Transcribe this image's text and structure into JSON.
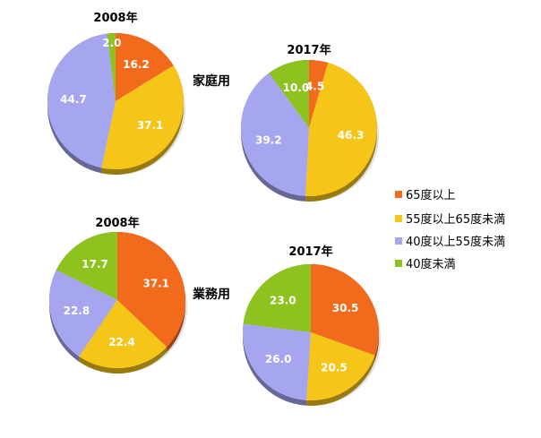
{
  "legend": [
    {
      "label": "65度以上",
      "color": "#f26b1d"
    },
    {
      "label": "55度以上65度未満",
      "color": "#f5c518"
    },
    {
      "label": "40度以上55度未満",
      "color": "#a6a6f0"
    },
    {
      "label": "40度未満",
      "color": "#8ec21f"
    }
  ],
  "groups": {
    "household": "家庭用",
    "business": "業務用"
  },
  "chart_data": [
    {
      "type": "pie",
      "title": "2008年",
      "group": "家庭用",
      "categories": [
        "65度以上",
        "55度以上65度未満",
        "40度以上55度未満",
        "40度未満"
      ],
      "values": [
        16.2,
        37.1,
        44.7,
        2.0
      ]
    },
    {
      "type": "pie",
      "title": "2017年",
      "group": "家庭用",
      "categories": [
        "65度以上",
        "55度以上65度未満",
        "40度以上55度未満",
        "40度未満"
      ],
      "values": [
        4.5,
        46.3,
        39.2,
        10.0
      ]
    },
    {
      "type": "pie",
      "title": "2008年",
      "group": "業務用",
      "categories": [
        "65度以上",
        "55度以上65度未満",
        "40度以上55度未満",
        "40度未満"
      ],
      "values": [
        37.1,
        22.4,
        22.8,
        17.7
      ]
    },
    {
      "type": "pie",
      "title": "2017年",
      "group": "業務用",
      "categories": [
        "65度以上",
        "55度以上65度未満",
        "40度以上55度未満",
        "40度未満"
      ],
      "values": [
        30.5,
        20.5,
        26.0,
        23.0
      ]
    }
  ]
}
